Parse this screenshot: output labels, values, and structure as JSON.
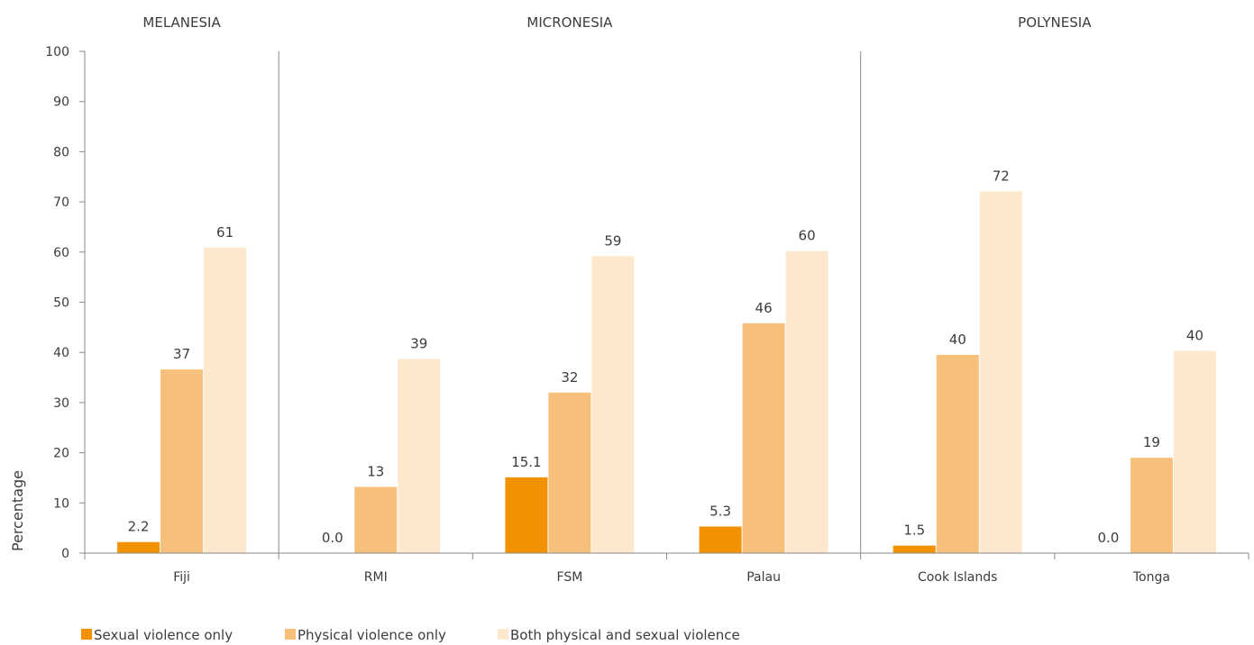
{
  "chart_data": {
    "type": "bar",
    "ylabel": "Percentage",
    "ylim": [
      0,
      100
    ],
    "yticks": [
      0,
      10,
      20,
      30,
      40,
      50,
      60,
      70,
      80,
      90,
      100
    ],
    "grid": false,
    "legend_position": "bottom-left",
    "groups": [
      {
        "name": "MELANESIA",
        "categories": [
          "Fiji"
        ]
      },
      {
        "name": "MICRONESIA",
        "categories": [
          "RMI",
          "FSM",
          "Palau"
        ]
      },
      {
        "name": "POLYNESIA",
        "categories": [
          "Cook  Islands",
          "Tonga"
        ]
      }
    ],
    "categories": [
      "Fiji",
      "RMI",
      "FSM",
      "Palau",
      "Cook  Islands",
      "Tonga"
    ],
    "series": [
      {
        "name": "Sexual violence only",
        "color": "#f29200",
        "values": [
          2.2,
          0.0,
          15.1,
          5.3,
          1.5,
          0.0
        ],
        "labels": [
          "2.2",
          "0.0",
          "15.1",
          "5.3",
          "1.5",
          "0.0"
        ]
      },
      {
        "name": "Physical violence only",
        "color": "#f7c07a",
        "values": [
          36.6,
          13.2,
          32.0,
          45.8,
          39.5,
          19.0
        ],
        "labels": [
          "37",
          "13",
          "32",
          "46",
          "40",
          "19"
        ]
      },
      {
        "name": "Both physical and sexual violence",
        "color": "#fde8ce",
        "values": [
          60.9,
          38.7,
          59.2,
          60.2,
          72.1,
          40.3
        ],
        "labels": [
          "61",
          "39",
          "59",
          "60",
          "72",
          "40"
        ]
      }
    ]
  }
}
